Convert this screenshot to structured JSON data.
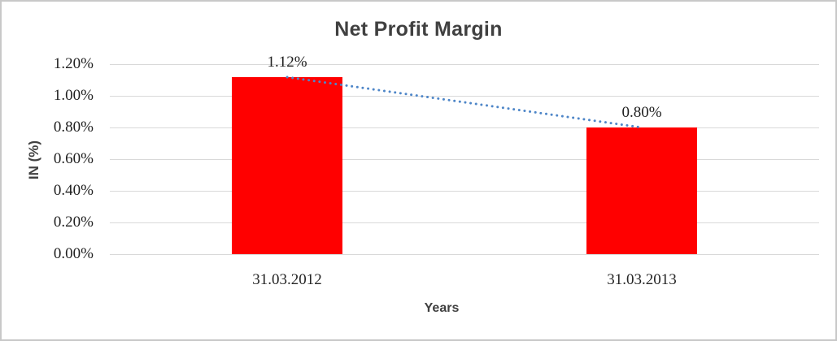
{
  "chart_data": {
    "type": "bar",
    "title": "Net Profit Margin",
    "categories": [
      "31.03.2012",
      "31.03.2013"
    ],
    "values": [
      1.12,
      0.8
    ],
    "data_labels": [
      "1.12%",
      "0.80%"
    ],
    "series": [
      {
        "name": "Net Profit Margin",
        "color": "#ff0000",
        "values": [
          1.12,
          0.8
        ]
      }
    ],
    "xlabel": "Years",
    "ylabel": "IN (%)",
    "ylim": [
      0,
      1.2
    ],
    "ytick_step": 0.2,
    "ytick_labels": [
      "1.20%",
      "1.00%",
      "0.80%",
      "0.60%",
      "0.40%",
      "0.20%",
      "0.00%"
    ],
    "grid": true,
    "legend": false,
    "trendline": {
      "style": "dotted",
      "color": "#4e86c8",
      "from_value": 1.12,
      "to_value": 0.8,
      "connects": "tops of the two bars"
    }
  },
  "colors": {
    "bar": "#ff0000",
    "trendline": "#4e86c8",
    "gridline": "#d9d9d9",
    "title_text": "#404040",
    "label_text": "#1f1f1f",
    "frame_border": "#c8c8c8"
  }
}
